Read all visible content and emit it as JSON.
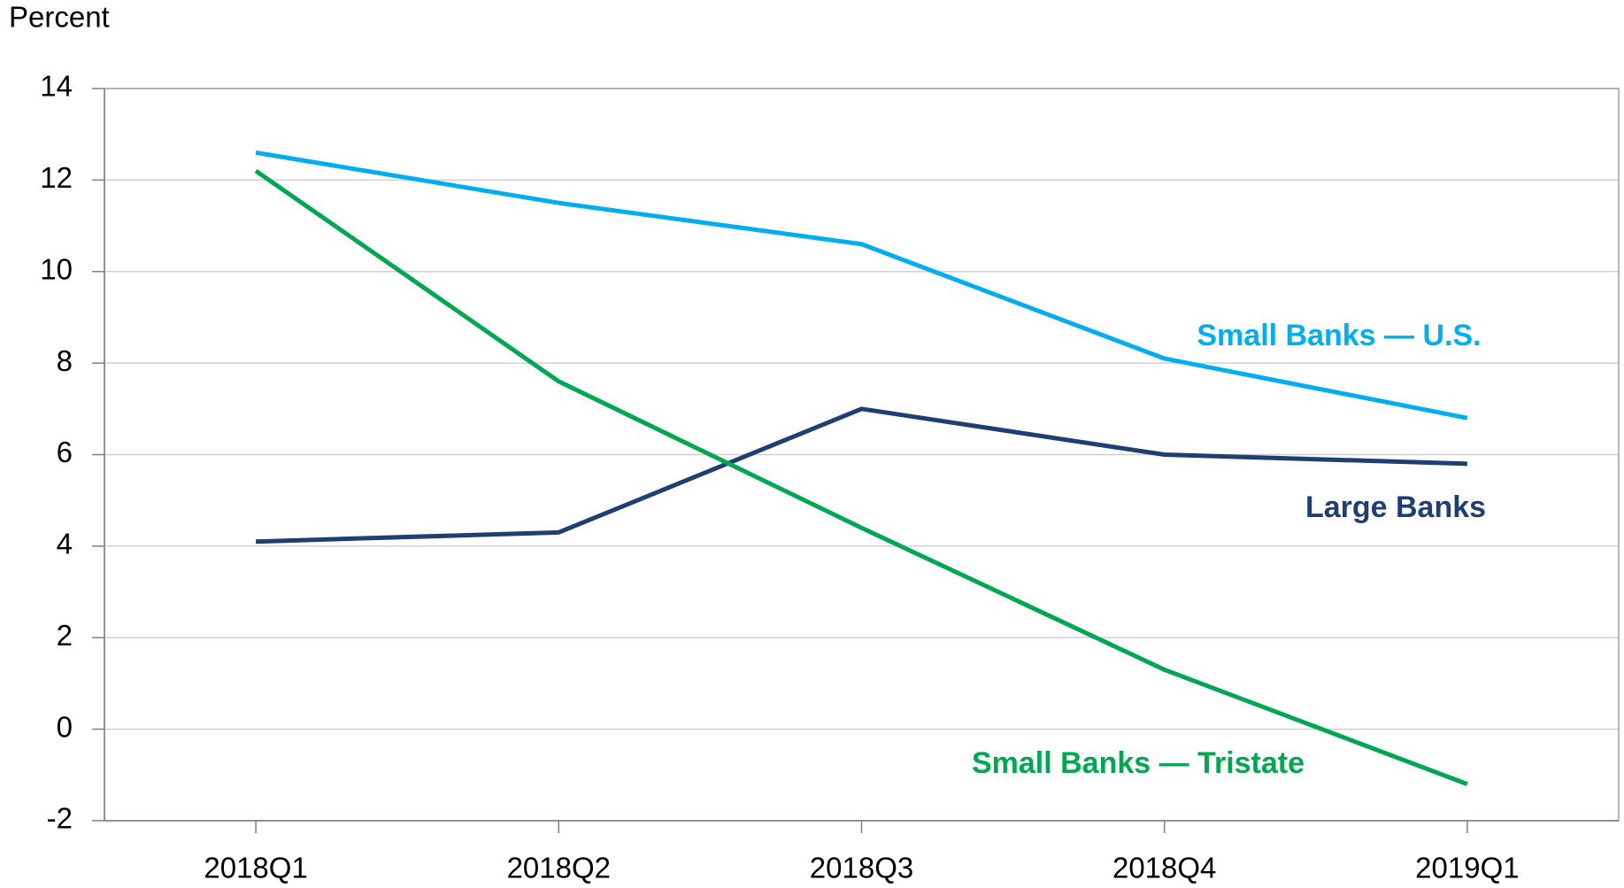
{
  "chart_data": {
    "type": "line",
    "y_axis_label": "Percent",
    "categories": [
      "2018Q1",
      "2018Q2",
      "2018Q3",
      "2018Q4",
      "2019Q1"
    ],
    "series": [
      {
        "name": "Small Banks — U.S.",
        "color": "#00aeef",
        "values": [
          12.6,
          11.5,
          10.6,
          8.1,
          6.8
        ]
      },
      {
        "name": "Large Banks",
        "color": "#1f3f73",
        "values": [
          4.1,
          4.3,
          7.0,
          6.0,
          5.8
        ]
      },
      {
        "name": "Small Banks — Tristate",
        "color": "#00a651",
        "values": [
          12.2,
          7.6,
          4.4,
          1.3,
          -1.2
        ]
      }
    ],
    "ylim": [
      -2,
      14
    ],
    "yticks": [
      -2,
      0,
      2,
      4,
      6,
      8,
      10,
      12,
      14
    ],
    "grid": true
  }
}
